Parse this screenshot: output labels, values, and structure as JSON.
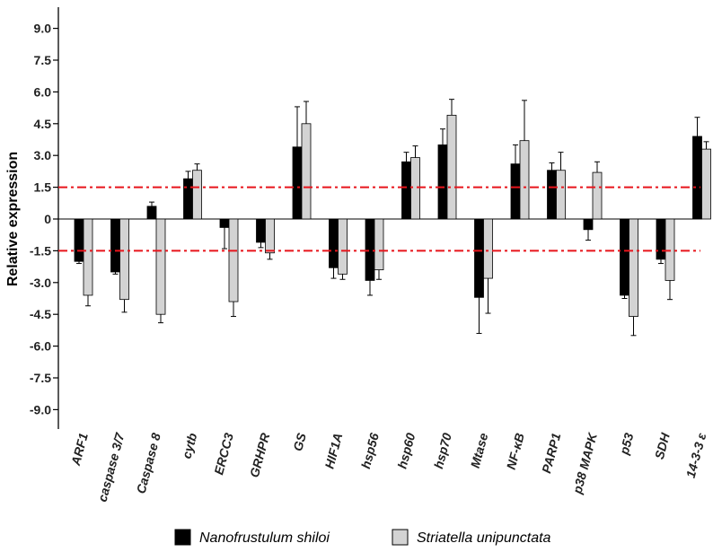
{
  "chart_data": {
    "type": "bar",
    "title": "",
    "xlabel": "",
    "ylabel": "Relative expression",
    "ylim": [
      -10.5,
      10.5
    ],
    "yticks": [
      "9.0",
      "7.5",
      "6.0",
      "4.5",
      "3.0",
      "1.5",
      "0",
      "-1.5",
      "-3.0",
      "-4.5",
      "-6.0",
      "-7.5",
      "-9.0"
    ],
    "ytick_values": [
      9,
      7.5,
      6,
      4.5,
      3,
      1.5,
      0,
      -1.5,
      -3,
      -4.5,
      -6,
      -7.5,
      -9
    ],
    "categories": [
      "ARF1",
      "caspase 3/7",
      "Caspase 8",
      "cytb",
      "ERCC3",
      "GRHPR",
      "GS",
      "HIF1A",
      "hsp56",
      "hsp60",
      "hsp70",
      "Mtase",
      "NF-κB",
      "PARP1",
      "p38 MAPK",
      "p53",
      "SDH",
      "14-3-3 ε"
    ],
    "series": [
      {
        "name": "Nanofrustulum shiloi",
        "color": "#000000",
        "values": [
          -2.0,
          -2.5,
          0.6,
          1.9,
          -0.4,
          -1.1,
          3.4,
          -2.3,
          -2.9,
          2.7,
          3.5,
          -3.7,
          2.6,
          2.3,
          -0.5,
          -3.6,
          -1.9,
          3.9
        ],
        "errors": [
          0.1,
          0.1,
          0.2,
          0.35,
          1.0,
          0.25,
          1.9,
          0.5,
          0.7,
          0.45,
          0.75,
          1.7,
          0.9,
          0.35,
          0.5,
          0.15,
          0.2,
          0.9
        ]
      },
      {
        "name": "Striatella unipunctata",
        "color": "#d3d3d3",
        "values": [
          -3.6,
          -3.8,
          -4.5,
          2.3,
          -3.9,
          -1.6,
          4.5,
          -2.6,
          -2.4,
          2.9,
          4.9,
          -2.8,
          3.7,
          2.3,
          2.2,
          -4.6,
          -2.9,
          3.3
        ],
        "errors": [
          0.5,
          0.6,
          0.4,
          0.3,
          0.7,
          0.3,
          1.05,
          0.25,
          0.45,
          0.55,
          0.75,
          1.65,
          1.9,
          0.85,
          0.5,
          0.9,
          0.9,
          0.35
        ]
      }
    ],
    "threshold_lines": [
      1.5,
      -1.5
    ],
    "threshold_color": "#e8141b",
    "legend": "bottom",
    "grid": false
  }
}
